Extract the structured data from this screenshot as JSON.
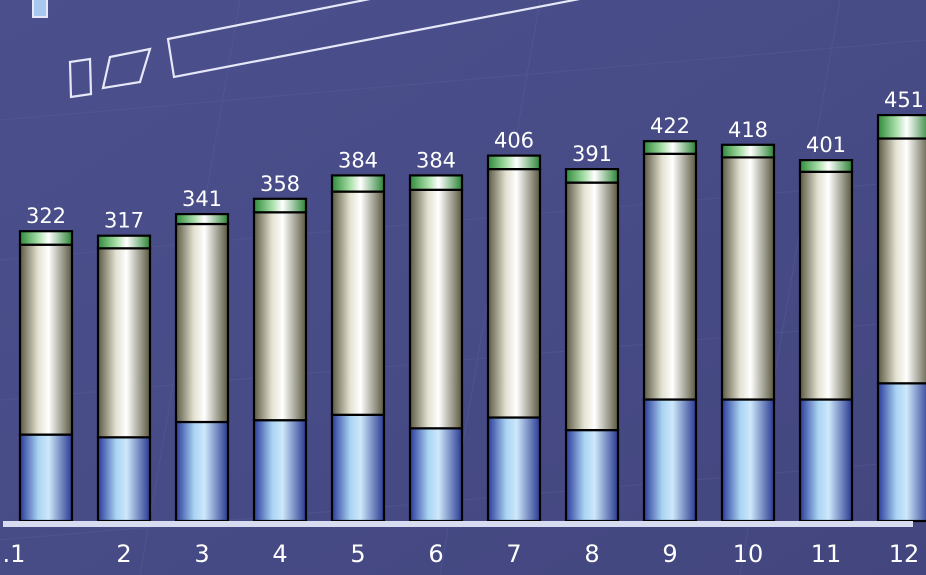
{
  "chart_data": {
    "type": "bar",
    "stacked": true,
    "categories": [
      ".1",
      "2",
      "3",
      "4",
      "5",
      "6",
      "7",
      "8",
      "9",
      "10",
      "11",
      "12"
    ],
    "totals": [
      "322",
      "317",
      "341",
      "358",
      "384",
      "384",
      "406",
      "391",
      "422",
      "418",
      "401",
      "451"
    ],
    "series": [
      {
        "values": [
          96,
          93,
          110,
          112,
          118,
          103,
          115,
          101,
          135,
          135,
          135,
          153
        ]
      },
      {
        "values": [
          211,
          210,
          220,
          231,
          248,
          265,
          276,
          275,
          273,
          269,
          253,
          272
        ]
      },
      {
        "values": [
          15,
          14,
          11,
          15,
          18,
          16,
          15,
          15,
          14,
          14,
          13,
          26
        ]
      }
    ],
    "ylim": [
      0,
      460
    ],
    "legend": "none",
    "grid": false,
    "colors": {
      "series_bottom": "#a8d2f0",
      "series_middle": "#e6e4d6",
      "series_top": "#6fbf6f",
      "background": "#474b85",
      "baseline": "#d8dcf0",
      "text": "#ffffff"
    }
  }
}
